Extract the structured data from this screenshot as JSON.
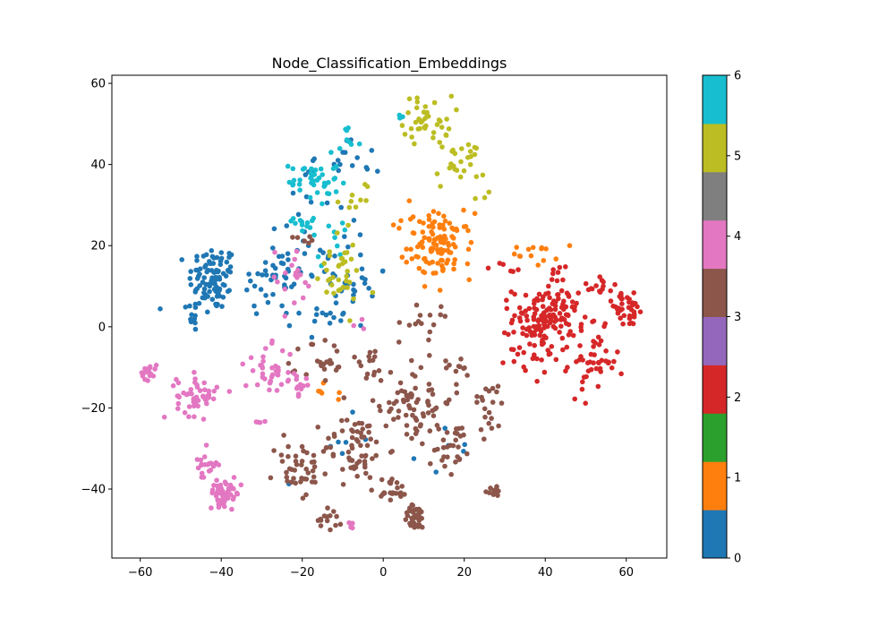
{
  "chart_data": {
    "type": "scatter",
    "title": "Node_Classification_Embeddings",
    "xlabel": "",
    "ylabel": "",
    "xlim": [
      -67,
      70
    ],
    "ylim": [
      -57,
      62
    ],
    "xticks": [
      -60,
      -40,
      -20,
      0,
      20,
      40,
      60
    ],
    "yticks": [
      -40,
      -20,
      0,
      20,
      40,
      60
    ],
    "grid": false,
    "colorbar": {
      "range": [
        0,
        6
      ],
      "ticks": [
        0,
        1,
        2,
        3,
        4,
        5,
        6
      ],
      "colors": [
        "#1f77b4",
        "#ff7f0e",
        "#2ca02c",
        "#d62728",
        "#9467bd",
        "#8c564b",
        "#e377c2",
        "#7f7f7f",
        "#bcbd22",
        "#17becf"
      ]
    },
    "class_colors": {
      "0": "#1f77b4",
      "1": "#ff7f0e",
      "2": "#d62728",
      "3": "#8c564b",
      "4": "#e377c2",
      "5": "#bcbd22",
      "6": "#17becf"
    },
    "clusters": [
      {
        "class": 0,
        "cx": -42,
        "cy": 12,
        "sx": 3,
        "sy": 4,
        "n": 90
      },
      {
        "class": 0,
        "cx": -47,
        "cy": 3,
        "sx": 2,
        "sy": 3,
        "n": 14
      },
      {
        "class": 0,
        "cx": -27,
        "cy": 12,
        "sx": 4,
        "sy": 5,
        "n": 40
      },
      {
        "class": 0,
        "cx": -14,
        "cy": 20,
        "sx": 6,
        "sy": 14,
        "n": 45
      },
      {
        "class": 0,
        "cx": -5,
        "cy": 10,
        "sx": 3,
        "sy": 3,
        "n": 16
      },
      {
        "class": 0,
        "cx": -10,
        "cy": 40,
        "sx": 5,
        "sy": 4,
        "n": 14
      },
      {
        "class": 0,
        "cx": -13,
        "cy": 4,
        "sx": 3,
        "sy": 2,
        "n": 10
      },
      {
        "class": 0,
        "cx": -10,
        "cy": -28,
        "sx": 4,
        "sy": 3,
        "n": 6
      },
      {
        "class": 0,
        "cx": 15,
        "cy": -30,
        "sx": 3,
        "sy": 3,
        "n": 6
      },
      {
        "class": 6,
        "cx": -17,
        "cy": 36,
        "sx": 3,
        "sy": 3,
        "n": 40
      },
      {
        "class": 6,
        "cx": -19,
        "cy": 26,
        "sx": 1.5,
        "sy": 1.5,
        "n": 12
      },
      {
        "class": 6,
        "cx": -9,
        "cy": 45,
        "sx": 1.5,
        "sy": 2,
        "n": 8
      },
      {
        "class": 6,
        "cx": -13,
        "cy": 22,
        "sx": 3,
        "sy": 3,
        "n": 10
      },
      {
        "class": 6,
        "cx": 4,
        "cy": 53,
        "sx": 1,
        "sy": 1,
        "n": 3
      },
      {
        "class": 5,
        "cx": 11,
        "cy": 51,
        "sx": 3,
        "sy": 3,
        "n": 40
      },
      {
        "class": 5,
        "cx": 19,
        "cy": 40,
        "sx": 3,
        "sy": 3,
        "n": 25
      },
      {
        "class": 5,
        "cx": -11,
        "cy": 13,
        "sx": 3,
        "sy": 4,
        "n": 35
      },
      {
        "class": 5,
        "cx": -7,
        "cy": 32,
        "sx": 2,
        "sy": 3,
        "n": 10
      },
      {
        "class": 5,
        "cx": 25,
        "cy": 32,
        "sx": 1,
        "sy": 1,
        "n": 3
      },
      {
        "class": 1,
        "cx": 14,
        "cy": 20,
        "sx": 4,
        "sy": 4,
        "n": 110
      },
      {
        "class": 1,
        "cx": 37,
        "cy": 18,
        "sx": 3,
        "sy": 1.5,
        "n": 14
      },
      {
        "class": 1,
        "cx": -14,
        "cy": -17,
        "sx": 1.5,
        "sy": 1.5,
        "n": 6
      },
      {
        "class": 1,
        "cx": 5,
        "cy": 27,
        "sx": 2,
        "sy": 2,
        "n": 4
      },
      {
        "class": 2,
        "cx": 40,
        "cy": 2,
        "sx": 4,
        "sy": 4,
        "n": 140
      },
      {
        "class": 2,
        "cx": 60,
        "cy": 4,
        "sx": 2.5,
        "sy": 2,
        "n": 35
      },
      {
        "class": 2,
        "cx": 53,
        "cy": 10,
        "sx": 3,
        "sy": 2,
        "n": 18
      },
      {
        "class": 2,
        "cx": 52,
        "cy": -9,
        "sx": 3,
        "sy": 4,
        "n": 45
      },
      {
        "class": 2,
        "cx": 36,
        "cy": -8,
        "sx": 3,
        "sy": 2,
        "n": 16
      },
      {
        "class": 2,
        "cx": 43,
        "cy": 13,
        "sx": 2,
        "sy": 1.5,
        "n": 8
      },
      {
        "class": 2,
        "cx": 31,
        "cy": 13,
        "sx": 2,
        "sy": 1.5,
        "n": 6
      },
      {
        "class": 3,
        "cx": 7,
        "cy": -18,
        "sx": 5,
        "sy": 6,
        "n": 80
      },
      {
        "class": 3,
        "cx": -7,
        "cy": -30,
        "sx": 4,
        "sy": 4,
        "n": 60
      },
      {
        "class": 3,
        "cx": -14,
        "cy": -10,
        "sx": 3,
        "sy": 4,
        "n": 24
      },
      {
        "class": 3,
        "cx": -21,
        "cy": -35,
        "sx": 3,
        "sy": 4,
        "n": 40
      },
      {
        "class": 3,
        "cx": 8,
        "cy": -47,
        "sx": 1.5,
        "sy": 1.5,
        "n": 40
      },
      {
        "class": 3,
        "cx": 2,
        "cy": -40,
        "sx": 2,
        "sy": 1.5,
        "n": 22
      },
      {
        "class": 3,
        "cx": 18,
        "cy": -30,
        "sx": 2,
        "sy": 3,
        "n": 26
      },
      {
        "class": 3,
        "cx": 26,
        "cy": -20,
        "sx": 2,
        "sy": 4,
        "n": 20
      },
      {
        "class": 3,
        "cx": 27,
        "cy": -40,
        "sx": 1.5,
        "sy": 1,
        "n": 10
      },
      {
        "class": 3,
        "cx": -13,
        "cy": -47,
        "sx": 1.5,
        "sy": 1.5,
        "n": 14
      },
      {
        "class": 3,
        "cx": -19,
        "cy": 22,
        "sx": 1.5,
        "sy": 1,
        "n": 6
      },
      {
        "class": 3,
        "cx": 10,
        "cy": 1,
        "sx": 3,
        "sy": 2,
        "n": 14
      },
      {
        "class": 3,
        "cx": -5,
        "cy": -8,
        "sx": 3,
        "sy": 2,
        "n": 12
      },
      {
        "class": 3,
        "cx": 19,
        "cy": -10,
        "sx": 2,
        "sy": 2,
        "n": 10
      },
      {
        "class": 4,
        "cx": -58,
        "cy": -11,
        "sx": 1,
        "sy": 1,
        "n": 20
      },
      {
        "class": 4,
        "cx": -46,
        "cy": -17,
        "sx": 2.5,
        "sy": 2.5,
        "n": 50
      },
      {
        "class": 4,
        "cx": -39,
        "cy": -41,
        "sx": 2,
        "sy": 1.5,
        "n": 50
      },
      {
        "class": 4,
        "cx": -44,
        "cy": -34,
        "sx": 1.5,
        "sy": 2,
        "n": 20
      },
      {
        "class": 4,
        "cx": -28,
        "cy": -11,
        "sx": 3,
        "sy": 3,
        "n": 35
      },
      {
        "class": 4,
        "cx": -21,
        "cy": -14,
        "sx": 2,
        "sy": 1.5,
        "n": 15
      },
      {
        "class": 4,
        "cx": -23,
        "cy": 12,
        "sx": 3,
        "sy": 4,
        "n": 18
      },
      {
        "class": 4,
        "cx": -31,
        "cy": -24,
        "sx": 1,
        "sy": 1,
        "n": 4
      },
      {
        "class": 4,
        "cx": -8,
        "cy": -49,
        "sx": 0.8,
        "sy": 0.5,
        "n": 5
      },
      {
        "class": 4,
        "cx": -6,
        "cy": 0,
        "sx": 1,
        "sy": 1,
        "n": 3
      }
    ]
  }
}
